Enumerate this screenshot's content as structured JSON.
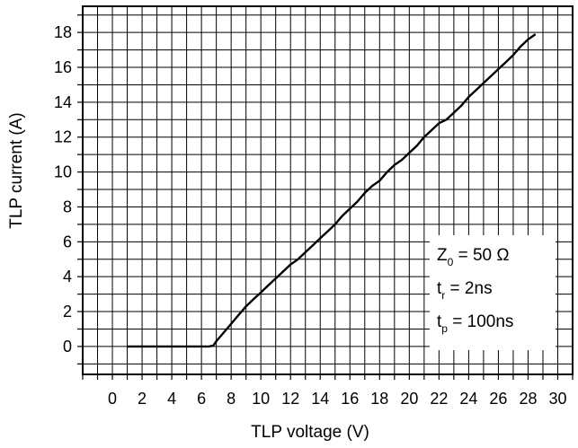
{
  "chart_data": {
    "type": "line",
    "title": "",
    "xlabel": "TLP voltage (V)",
    "ylabel": "TLP current (A)",
    "xlim": [
      -2,
      31
    ],
    "ylim": [
      -1.6,
      19.5
    ],
    "xticks": [
      0,
      2,
      4,
      6,
      8,
      10,
      12,
      14,
      16,
      18,
      20,
      22,
      24,
      26,
      28,
      30
    ],
    "yticks": [
      0,
      2,
      4,
      6,
      8,
      10,
      12,
      14,
      16,
      18
    ],
    "xtick_labels": [
      "0",
      "2",
      "4",
      "6",
      "8",
      "10",
      "12",
      "14",
      "16",
      "18",
      "20",
      "22",
      "24",
      "26",
      "28",
      "30"
    ],
    "ytick_labels": [
      "0",
      "2",
      "4",
      "6",
      "8",
      "10",
      "12",
      "14",
      "16",
      "18"
    ],
    "grid": true,
    "legend": {
      "lines": [
        {
          "main": "Z",
          "sub": "0",
          "rest": " = 50 Ω"
        },
        {
          "main": "t",
          "sub": "r",
          "rest": " = 2ns"
        },
        {
          "main": "t",
          "sub": "p",
          "rest": " = 100ns"
        }
      ]
    },
    "series": [
      {
        "x": [
          1.0,
          2.0,
          3.0,
          4.0,
          5.0,
          6.0,
          6.5,
          6.8,
          7.0,
          7.5,
          8.0,
          8.5,
          9.0,
          9.5,
          10.0,
          10.5,
          11.0,
          11.5,
          12.0,
          12.5,
          13.0,
          13.5,
          14.0,
          14.5,
          15.0,
          15.5,
          16.0,
          16.5,
          17.0,
          17.5,
          18.0,
          18.5,
          19.0,
          19.5,
          20.0,
          20.5,
          21.0,
          21.5,
          22.0,
          22.5,
          23.0,
          23.5,
          24.0,
          24.5,
          25.0,
          25.5,
          26.0,
          26.5,
          27.0,
          27.5,
          28.0,
          28.5
        ],
        "y": [
          0,
          0,
          0,
          0,
          0,
          0,
          0,
          0.05,
          0.3,
          0.8,
          1.3,
          1.8,
          2.3,
          2.7,
          3.1,
          3.5,
          3.9,
          4.3,
          4.7,
          5.0,
          5.4,
          5.8,
          6.2,
          6.6,
          7.0,
          7.5,
          7.9,
          8.3,
          8.8,
          9.2,
          9.5,
          10.0,
          10.4,
          10.7,
          11.1,
          11.5,
          12.0,
          12.4,
          12.8,
          13.0,
          13.4,
          13.8,
          14.3,
          14.7,
          15.1,
          15.5,
          15.9,
          16.3,
          16.7,
          17.2,
          17.6,
          17.9
        ]
      }
    ]
  }
}
